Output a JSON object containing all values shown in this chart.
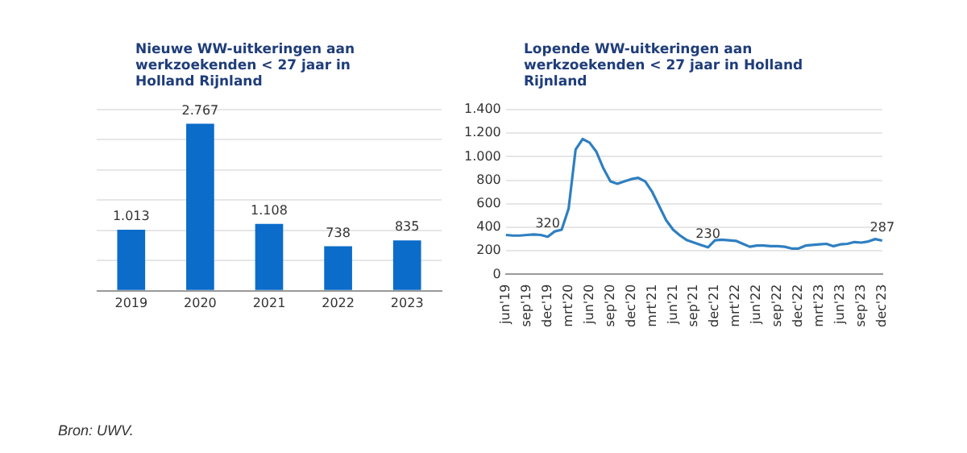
{
  "chart_data": [
    {
      "type": "bar",
      "title": "Nieuwe WW-uitkeringen aan werkzoekenden < 27 jaar in Holland Rijnland",
      "categories": [
        "2019",
        "2020",
        "2021",
        "2022",
        "2023"
      ],
      "values": [
        1013,
        2767,
        1108,
        738,
        835
      ],
      "value_labels": [
        "1.013",
        "2.767",
        "1.108",
        "738",
        "835"
      ],
      "color": "#0b6cc9",
      "ylim": [
        0,
        3000
      ],
      "yticks": [
        {
          "value": 0,
          "label": null
        },
        {
          "value": 500,
          "label": null
        },
        {
          "value": 1000,
          "label": null
        },
        {
          "value": 1500,
          "label": null
        },
        {
          "value": 2000,
          "label": null
        },
        {
          "value": 2500,
          "label": null
        },
        {
          "value": 3000,
          "label": null
        }
      ],
      "grid": "y",
      "tick_labels": "x",
      "annotations": [
        "Bron: UWV."
      ]
    },
    {
      "type": "line",
      "title": "Lopende WW-uitkeringen aan werkzoekenden  < 27 jaar in Holland Rijnland",
      "categories": [
        "jun'19",
        null,
        null,
        "sep'19",
        null,
        null,
        "dec'19",
        null,
        null,
        "mrt'20",
        null,
        null,
        "jun'20",
        null,
        null,
        "sep'20",
        null,
        null,
        "dec'20",
        null,
        null,
        "mrt'21",
        null,
        null,
        "jun'21",
        null,
        null,
        "sep'21",
        null,
        null,
        "dec'21",
        null,
        null,
        "mrt'22",
        null,
        null,
        "jun'22",
        null,
        null,
        "sep'22",
        null,
        null,
        "dec'22",
        null,
        null,
        "mrt'23",
        null,
        null,
        "jun'23",
        null,
        null,
        "sep'23",
        null,
        null,
        "dec'23"
      ],
      "values": [
        335,
        330,
        330,
        335,
        340,
        335,
        320,
        365,
        380,
        560,
        1060,
        1150,
        1120,
        1040,
        900,
        790,
        770,
        790,
        810,
        820,
        790,
        700,
        580,
        460,
        380,
        330,
        290,
        270,
        250,
        230,
        290,
        295,
        290,
        285,
        260,
        235,
        245,
        245,
        240,
        240,
        235,
        220,
        220,
        245,
        250,
        255,
        260,
        240,
        255,
        260,
        275,
        270,
        280,
        300,
        287
      ],
      "value_labels": [
        null,
        null,
        null,
        null,
        null,
        null,
        "320",
        null,
        null,
        null,
        null,
        null,
        null,
        null,
        null,
        null,
        null,
        null,
        null,
        null,
        null,
        null,
        null,
        null,
        null,
        null,
        null,
        null,
        null,
        "230",
        null,
        null,
        null,
        null,
        null,
        null,
        null,
        null,
        null,
        null,
        null,
        null,
        null,
        null,
        null,
        null,
        null,
        null,
        null,
        null,
        null,
        null,
        null,
        null,
        "287"
      ],
      "color": "#2f7fc1",
      "ylim": [
        0,
        1400
      ],
      "yticks": [
        0,
        200,
        400,
        600,
        800,
        {
          "value": 1000,
          "label": "1.000"
        },
        {
          "value": 1200,
          "label": "1.200"
        },
        {
          "value": 1400,
          "label": "1.400"
        }
      ],
      "grid": "y"
    }
  ]
}
